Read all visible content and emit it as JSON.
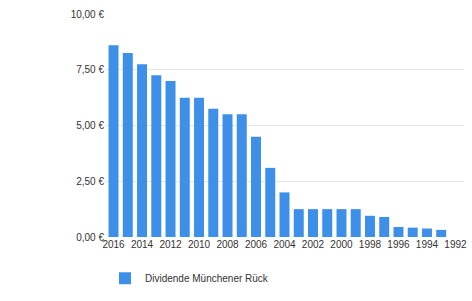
{
  "chart_data": {
    "type": "bar",
    "categories": [
      "2016",
      null,
      "2014",
      null,
      "2012",
      null,
      "2010",
      null,
      "2008",
      null,
      "2006",
      null,
      "2004",
      null,
      "2002",
      null,
      "2000",
      null,
      "1998",
      null,
      "1996",
      null,
      "1994",
      null,
      "1992"
    ],
    "series": [
      {
        "name": "Dividende Münchener Rück",
        "color": "#3d8fe8",
        "values": [
          8.6,
          8.25,
          7.75,
          7.25,
          7.0,
          6.25,
          6.25,
          5.75,
          5.5,
          5.5,
          4.5,
          3.1,
          2.0,
          1.25,
          1.25,
          1.25,
          1.25,
          1.25,
          0.95,
          0.9,
          0.45,
          0.42,
          0.38,
          0.32,
          null
        ]
      }
    ],
    "ylim": [
      0,
      10
    ],
    "yticks": [
      {
        "value": 0,
        "label": "0,00 €"
      },
      {
        "value": 2.5,
        "label": "2,50 €"
      },
      {
        "value": 5,
        "label": "5,00 €"
      },
      {
        "value": 7.5,
        "label": "7,50 €"
      },
      {
        "value": 10,
        "label": "10,00 €"
      }
    ],
    "grid": true,
    "legend": "bottom-left"
  }
}
